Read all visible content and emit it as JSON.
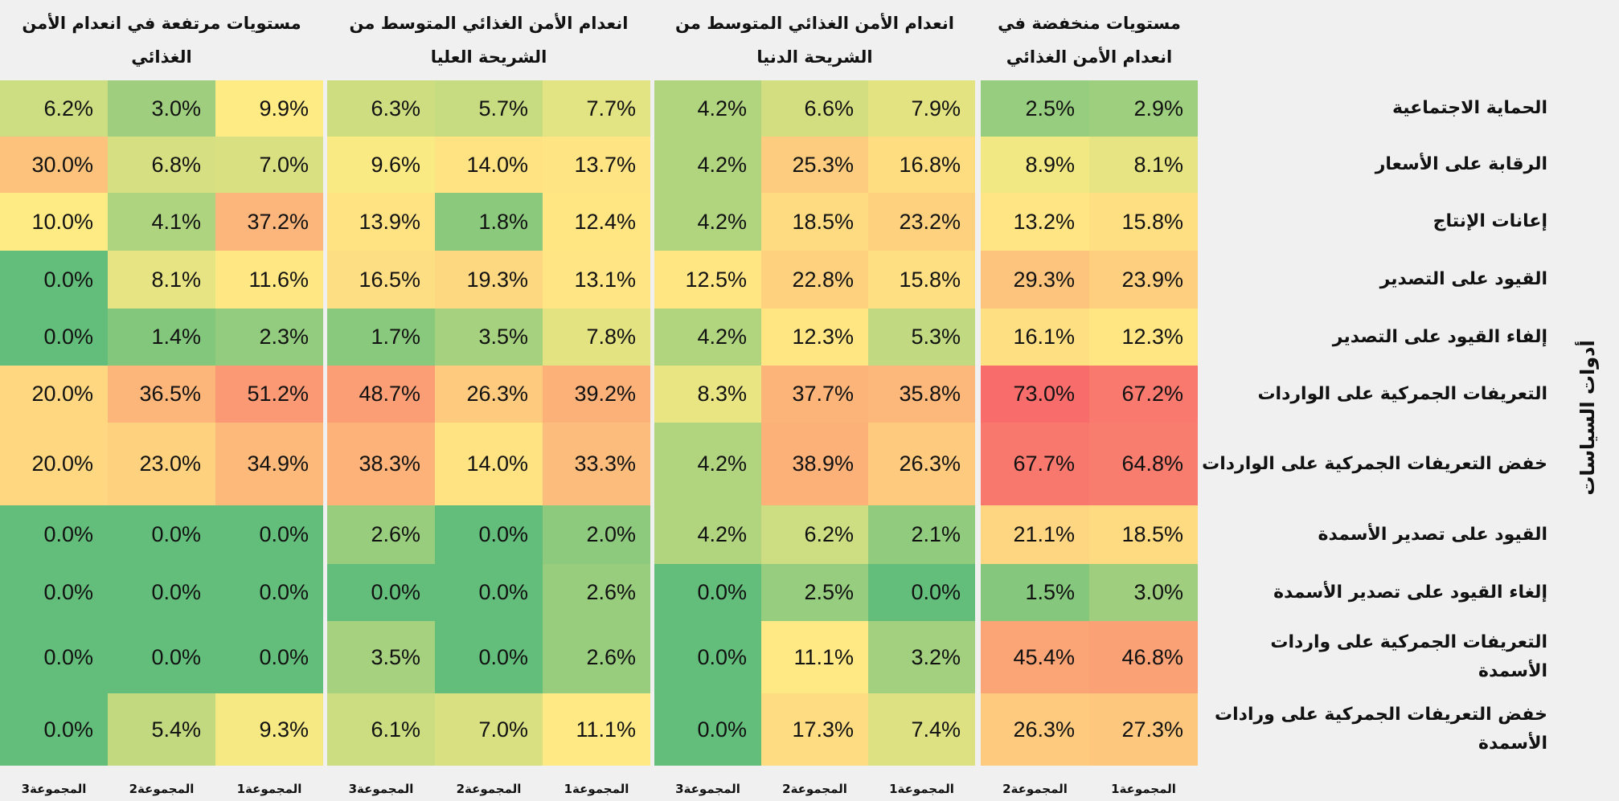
{
  "chart_data": {
    "type": "heatmap",
    "ylabel": "أدوات السياسات",
    "rows": [
      "الحماية الاجتماعية",
      "الرقابة على الأسعار",
      "إعانات الإنتاج",
      "القيود على التصدير",
      "إلفاء القيود على التصدير",
      "التعريفات الجمركية على الواردات",
      "خفض التعريفات الجمركية على الواردات",
      "القيود على تصدير الأسمدة",
      "إلغاء القيود على تصدير الأسمدة",
      "التعريفات الجمركية على واردات الأسمدة",
      "خفض التعريفات الجمركية على ورادات الأسمدة"
    ],
    "groups": [
      {
        "title": "مستويات منخفضة في انعدام الأمن الغذائي",
        "columns": [
          "المجموعة1",
          "المجموعة2"
        ],
        "values": [
          [
            "2.9%",
            "2.5%"
          ],
          [
            "8.1%",
            "8.9%"
          ],
          [
            "15.8%",
            "13.2%"
          ],
          [
            "23.9%",
            "29.3%"
          ],
          [
            "12.3%",
            "16.1%"
          ],
          [
            "67.2%",
            "73.0%"
          ],
          [
            "64.8%",
            "67.7%"
          ],
          [
            "18.5%",
            "21.1%"
          ],
          [
            "3.0%",
            "1.5%"
          ],
          [
            "46.8%",
            "45.4%"
          ],
          [
            "27.3%",
            "26.3%"
          ]
        ]
      },
      {
        "title": "انعدام الأمن الغذائي المتوسط من الشريحة الدنيا",
        "columns": [
          "المجموعة1",
          "المجموعة2",
          "المجموعة3"
        ],
        "values": [
          [
            "7.9%",
            "6.6%",
            "4.2%"
          ],
          [
            "16.8%",
            "25.3%",
            "4.2%"
          ],
          [
            "23.2%",
            "18.5%",
            "4.2%"
          ],
          [
            "15.8%",
            "22.8%",
            "12.5%"
          ],
          [
            "5.3%",
            "12.3%",
            "4.2%"
          ],
          [
            "35.8%",
            "37.7%",
            "8.3%"
          ],
          [
            "26.3%",
            "38.9%",
            "4.2%"
          ],
          [
            "2.1%",
            "6.2%",
            "4.2%"
          ],
          [
            "0.0%",
            "2.5%",
            "0.0%"
          ],
          [
            "3.2%",
            "11.1%",
            "0.0%"
          ],
          [
            "7.4%",
            "17.3%",
            "0.0%"
          ]
        ]
      },
      {
        "title": "انعدام الأمن الغذائي المتوسط من الشريحة العليا",
        "columns": [
          "المجموعة1",
          "المجموعة2",
          "المجموعة3"
        ],
        "values": [
          [
            "7.7%",
            "5.7%",
            "6.3%"
          ],
          [
            "13.7%",
            "14.0%",
            "9.6%"
          ],
          [
            "12.4%",
            "1.8%",
            "13.9%"
          ],
          [
            "13.1%",
            "19.3%",
            "16.5%"
          ],
          [
            "7.8%",
            "3.5%",
            "1.7%"
          ],
          [
            "39.2%",
            "26.3%",
            "48.7%"
          ],
          [
            "33.3%",
            "14.0%",
            "38.3%"
          ],
          [
            "2.0%",
            "0.0%",
            "2.6%"
          ],
          [
            "2.6%",
            "0.0%",
            "0.0%"
          ],
          [
            "2.6%",
            "0.0%",
            "3.5%"
          ],
          [
            "11.1%",
            "7.0%",
            "6.1%"
          ]
        ]
      },
      {
        "title": "مستويات مرتفعة في انعدام الأمن الغذائي",
        "columns": [
          "المجموعة1",
          "المجموعة2",
          "المجموعة3"
        ],
        "values": [
          [
            "9.9%",
            "3.0%",
            "6.2%"
          ],
          [
            "7.0%",
            "6.8%",
            "30.0%"
          ],
          [
            "37.2%",
            "4.1%",
            "10.0%"
          ],
          [
            "11.6%",
            "8.1%",
            "0.0%"
          ],
          [
            "2.3%",
            "1.4%",
            "0.0%"
          ],
          [
            "51.2%",
            "36.5%",
            "20.0%"
          ],
          [
            "34.9%",
            "23.0%",
            "20.0%"
          ],
          [
            "0.0%",
            "0.0%",
            "0.0%"
          ],
          [
            "0.0%",
            "0.0%",
            "0.0%"
          ],
          [
            "0.0%",
            "0.0%",
            "0.0%"
          ],
          [
            "9.3%",
            "5.4%",
            "0.0%"
          ]
        ]
      }
    ],
    "color_scale": {
      "low": "#63be7b",
      "mid": "#ffeb84",
      "high": "#f8696b"
    }
  }
}
